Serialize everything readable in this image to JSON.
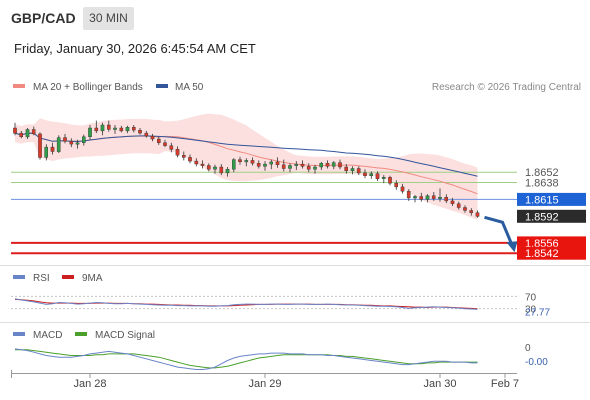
{
  "header": {
    "symbol": "GBP/CAD",
    "timeframe": "30 MIN",
    "datetime": "Friday, January 30, 2026 6:45:54 AM CET",
    "copyright": "Research © 2026 Trading Central"
  },
  "colors": {
    "bullish": "#2e9e4a",
    "bearish": "#d83a2a",
    "bollinger_band": "#f9d6d4",
    "ma20": "#f08a80",
    "ma50": "#33559a",
    "support": "#e01d1d",
    "resistance": "#9fcf86",
    "pivot": "#6c8fe0",
    "forecast_arrow": "#2a5c9e",
    "rsi_line": "#6a84c8",
    "rsi_ma": "#cc2020",
    "macd_line": "#6a84c8",
    "macd_signal": "#4aa02a"
  },
  "chart_data": [
    {
      "type": "candlestick",
      "legend": [
        {
          "name": "MA 20 + Bollinger Bands",
          "color": "#f08a80"
        },
        {
          "name": "MA 50",
          "color": "#33559a"
        }
      ],
      "y_range": [
        1.853,
        1.875
      ],
      "x_labels": [
        "Jan 28",
        "Jan 29",
        "Jan 30",
        "Feb 7"
      ],
      "candles": [
        [
          1.8712,
          1.8719,
          1.8702,
          1.8705
        ],
        [
          1.8705,
          1.8708,
          1.8698,
          1.87
        ],
        [
          1.87,
          1.8712,
          1.8697,
          1.871
        ],
        [
          1.871,
          1.8714,
          1.8702,
          1.8704
        ],
        [
          1.8704,
          1.8706,
          1.8669,
          1.8672
        ],
        [
          1.8672,
          1.869,
          1.8668,
          1.8686
        ],
        [
          1.8686,
          1.8692,
          1.8676,
          1.868
        ],
        [
          1.868,
          1.8702,
          1.8678,
          1.8699
        ],
        [
          1.8699,
          1.8704,
          1.8691,
          1.8694
        ],
        [
          1.8694,
          1.8698,
          1.8686,
          1.869
        ],
        [
          1.869,
          1.8696,
          1.8684,
          1.8692
        ],
        [
          1.8692,
          1.8703,
          1.8688,
          1.87
        ],
        [
          1.87,
          1.8716,
          1.8696,
          1.8712
        ],
        [
          1.8712,
          1.8722,
          1.8705,
          1.8708
        ],
        [
          1.8708,
          1.8719,
          1.8702,
          1.8716
        ],
        [
          1.8716,
          1.8722,
          1.8707,
          1.871
        ],
        [
          1.871,
          1.8716,
          1.8704,
          1.8712
        ],
        [
          1.8712,
          1.8715,
          1.8706,
          1.8708
        ],
        [
          1.8708,
          1.8715,
          1.8705,
          1.8713
        ],
        [
          1.8713,
          1.8716,
          1.8706,
          1.8709
        ],
        [
          1.8709,
          1.8712,
          1.8703,
          1.8705
        ],
        [
          1.8705,
          1.8708,
          1.8699,
          1.8701
        ],
        [
          1.8701,
          1.8704,
          1.8694,
          1.8697
        ],
        [
          1.8697,
          1.87,
          1.8689,
          1.8692
        ],
        [
          1.8692,
          1.8696,
          1.8686,
          1.8688
        ],
        [
          1.8688,
          1.8692,
          1.8679,
          1.8683
        ],
        [
          1.8683,
          1.8687,
          1.8672,
          1.8675
        ],
        [
          1.8675,
          1.868,
          1.8668,
          1.8672
        ],
        [
          1.8672,
          1.8676,
          1.8664,
          1.8667
        ],
        [
          1.8667,
          1.8671,
          1.866,
          1.8663
        ],
        [
          1.8663,
          1.8668,
          1.8657,
          1.8661
        ],
        [
          1.8661,
          1.8664,
          1.8653,
          1.8656
        ],
        [
          1.8656,
          1.8662,
          1.865,
          1.8659
        ],
        [
          1.8659,
          1.8663,
          1.8648,
          1.8651
        ],
        [
          1.8651,
          1.8659,
          1.8646,
          1.8656
        ],
        [
          1.8656,
          1.8671,
          1.8652,
          1.8669
        ],
        [
          1.8669,
          1.8673,
          1.8662,
          1.8666
        ],
        [
          1.8666,
          1.8671,
          1.866,
          1.8668
        ],
        [
          1.8668,
          1.8672,
          1.8661,
          1.8664
        ],
        [
          1.8664,
          1.8668,
          1.8657,
          1.866
        ],
        [
          1.866,
          1.8667,
          1.8654,
          1.8663
        ],
        [
          1.8663,
          1.8669,
          1.8656,
          1.8666
        ],
        [
          1.8666,
          1.8672,
          1.8658,
          1.8662
        ],
        [
          1.8662,
          1.8669,
          1.8653,
          1.8657
        ],
        [
          1.8657,
          1.8664,
          1.8652,
          1.8661
        ],
        [
          1.8661,
          1.8667,
          1.8655,
          1.8663
        ],
        [
          1.8663,
          1.8668,
          1.8657,
          1.866
        ],
        [
          1.866,
          1.8664,
          1.8652,
          1.8656
        ],
        [
          1.8656,
          1.8662,
          1.865,
          1.8659
        ],
        [
          1.8659,
          1.8666,
          1.8655,
          1.8664
        ],
        [
          1.8664,
          1.8668,
          1.8657,
          1.866
        ],
        [
          1.866,
          1.8667,
          1.8656,
          1.8665
        ],
        [
          1.8665,
          1.8669,
          1.8656,
          1.8659
        ],
        [
          1.8659,
          1.8663,
          1.865,
          1.8654
        ],
        [
          1.8654,
          1.866,
          1.8649,
          1.8657
        ],
        [
          1.8657,
          1.866,
          1.8648,
          1.8651
        ],
        [
          1.8651,
          1.8656,
          1.8644,
          1.8647
        ],
        [
          1.8647,
          1.8653,
          1.8643,
          1.865
        ],
        [
          1.865,
          1.8653,
          1.864,
          1.8643
        ],
        [
          1.8643,
          1.8648,
          1.8637,
          1.8645
        ],
        [
          1.8645,
          1.8647,
          1.8634,
          1.8637
        ],
        [
          1.8637,
          1.8641,
          1.8628,
          1.8632
        ],
        [
          1.8632,
          1.8636,
          1.8623,
          1.8626
        ],
        [
          1.8626,
          1.8629,
          1.8613,
          1.8617
        ],
        [
          1.8617,
          1.8621,
          1.8611,
          1.8619
        ],
        [
          1.8619,
          1.8624,
          1.8612,
          1.8615
        ],
        [
          1.8615,
          1.8622,
          1.8611,
          1.862
        ],
        [
          1.862,
          1.8625,
          1.8613,
          1.8616
        ],
        [
          1.8616,
          1.863,
          1.8612,
          1.8618
        ],
        [
          1.8618,
          1.8622,
          1.861,
          1.8613
        ],
        [
          1.8613,
          1.8617,
          1.8606,
          1.8609
        ],
        [
          1.8609,
          1.8612,
          1.8601,
          1.8604
        ],
        [
          1.8604,
          1.8607,
          1.8597,
          1.86
        ],
        [
          1.86,
          1.8603,
          1.8593,
          1.8597
        ],
        [
          1.8597,
          1.86,
          1.859,
          1.8592
        ]
      ],
      "levels": [
        {
          "value": "1.8652",
          "kind": "resistance"
        },
        {
          "value": "1.8638",
          "kind": "resistance"
        },
        {
          "value": "1.8615",
          "kind": "pivot"
        },
        {
          "value": "1.8592",
          "kind": "last"
        },
        {
          "value": "1.8556",
          "kind": "support"
        },
        {
          "value": "1.8542",
          "kind": "support"
        }
      ]
    },
    {
      "type": "line",
      "legend": [
        {
          "name": "RSI",
          "color": "#6a84c8"
        },
        {
          "name": "9MA",
          "color": "#cc2020"
        }
      ],
      "y_range": [
        0,
        100
      ],
      "ticks": [
        "70",
        "30"
      ],
      "current_value": "27.77",
      "rsi": [
        62,
        58,
        55,
        52,
        48,
        44,
        46,
        50,
        49,
        47,
        45,
        46,
        48,
        50,
        49,
        47,
        46,
        46,
        47,
        46,
        45,
        44,
        43,
        42,
        41,
        41,
        40,
        40,
        39,
        39,
        39,
        38,
        38,
        39,
        40,
        43,
        44,
        45,
        45,
        44,
        44,
        45,
        45,
        44,
        44,
        45,
        45,
        44,
        44,
        44,
        45,
        44,
        43,
        42,
        42,
        41,
        40,
        39,
        38,
        38,
        37,
        36,
        34,
        31,
        33,
        34,
        35,
        36,
        35,
        34,
        33,
        32,
        30,
        29,
        27.77
      ],
      "rsi_ma": [
        60,
        59,
        57,
        55,
        52,
        49,
        48,
        48,
        48,
        48,
        47,
        47,
        47,
        48,
        48,
        48,
        47,
        47,
        47,
        46,
        46,
        45,
        45,
        44,
        43,
        42,
        42,
        41,
        41,
        40,
        40,
        39,
        39,
        39,
        39,
        40,
        41,
        42,
        43,
        44,
        44,
        44,
        45,
        45,
        45,
        45,
        45,
        45,
        44,
        44,
        44,
        44,
        44,
        43,
        43,
        42,
        41,
        41,
        40,
        39,
        39,
        38,
        37,
        36,
        35,
        35,
        34,
        35,
        35,
        35,
        34,
        33,
        32,
        31,
        30
      ]
    },
    {
      "type": "line",
      "legend": [
        {
          "name": "MACD",
          "color": "#6a84c8"
        },
        {
          "name": "MACD Signal",
          "color": "#4aa02a"
        }
      ],
      "y_range": [
        -0.0024,
        0.001
      ],
      "ticks": [
        "0"
      ],
      "current_value": "-0.00",
      "macd": [
        0.0004,
        0.0003,
        0.0002,
        0.0,
        -0.0002,
        -0.0004,
        -0.0005,
        -0.0006,
        -0.0006,
        -0.0006,
        -0.0005,
        -0.0004,
        -0.0002,
        -0.0001,
        0.0,
        0.0001,
        0.0,
        -0.0001,
        -0.0002,
        -0.0004,
        -0.0006,
        -0.0008,
        -0.001,
        -0.0012,
        -0.0014,
        -0.0016,
        -0.0018,
        -0.0019,
        -0.002,
        -0.0021,
        -0.0021,
        -0.002,
        -0.0018,
        -0.0014,
        -0.001,
        -0.0007,
        -0.0005,
        -0.0004,
        -0.0003,
        -0.0002,
        -0.0002,
        -0.0001,
        -0.0001,
        -0.0001,
        -0.0002,
        -0.0002,
        -0.0002,
        -0.0003,
        -0.0003,
        -0.0003,
        -0.0004,
        -0.0004,
        -0.0005,
        -0.0006,
        -0.0007,
        -0.0008,
        -0.0009,
        -0.001,
        -0.0011,
        -0.0012,
        -0.0013,
        -0.0014,
        -0.0015,
        -0.0015,
        -0.0014,
        -0.0013,
        -0.0012,
        -0.0011,
        -0.0011,
        -0.0011,
        -0.0012,
        -0.0012,
        -0.0012,
        -0.0013,
        -0.0013
      ],
      "signal": [
        0.0003,
        0.0003,
        0.0003,
        0.0002,
        0.0001,
        0.0,
        -0.0001,
        -0.0002,
        -0.0003,
        -0.0004,
        -0.0004,
        -0.0004,
        -0.0004,
        -0.0003,
        -0.0003,
        -0.0002,
        -0.0002,
        -0.0002,
        -0.0002,
        -0.0002,
        -0.0003,
        -0.0004,
        -0.0005,
        -0.0006,
        -0.0008,
        -0.001,
        -0.0012,
        -0.0014,
        -0.0016,
        -0.0017,
        -0.0018,
        -0.0019,
        -0.0019,
        -0.0018,
        -0.0017,
        -0.0015,
        -0.0013,
        -0.0011,
        -0.0009,
        -0.0007,
        -0.0006,
        -0.0005,
        -0.0004,
        -0.0003,
        -0.0003,
        -0.0003,
        -0.0003,
        -0.0003,
        -0.0003,
        -0.0003,
        -0.0003,
        -0.0004,
        -0.0004,
        -0.0005,
        -0.0005,
        -0.0006,
        -0.0007,
        -0.0008,
        -0.0009,
        -0.001,
        -0.0011,
        -0.0012,
        -0.0013,
        -0.0014,
        -0.0014,
        -0.0014,
        -0.0013,
        -0.0013,
        -0.0012,
        -0.0012,
        -0.0012,
        -0.0012,
        -0.0012,
        -0.0012,
        -0.0012
      ]
    }
  ]
}
